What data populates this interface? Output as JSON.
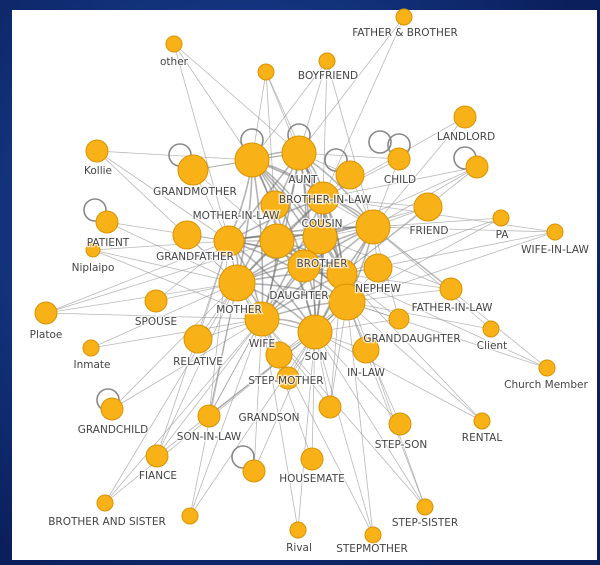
{
  "nodes": [
    {
      "label": "FATHER & BROTHER"
    },
    {
      "label": "other"
    },
    {
      "label": "BOYFRIEND"
    },
    {
      "label": "LANDLORD"
    },
    {
      "label": "Kollie"
    },
    {
      "label": "GRANDMOTHER"
    },
    {
      "label": "AUNT"
    },
    {
      "label": "CHILD"
    },
    {
      "label": "BROTHER-IN-LAW"
    },
    {
      "label": "MOTHER-IN-LAW"
    },
    {
      "label": "COUSIN"
    },
    {
      "label": "FRIEND"
    },
    {
      "label": "PATIENT"
    },
    {
      "label": "PA"
    },
    {
      "label": "WIFE-IN-LAW"
    },
    {
      "label": "GRANDFATHER"
    },
    {
      "label": "Niplaipo"
    },
    {
      "label": "BROTHER"
    },
    {
      "label": "DAUGHTER"
    },
    {
      "label": "NEPHEW"
    },
    {
      "label": "FATHER-IN-LAW"
    },
    {
      "label": "SPOUSE"
    },
    {
      "label": "MOTHER"
    },
    {
      "label": "Platoe"
    },
    {
      "label": "Client"
    },
    {
      "label": "WIFE"
    },
    {
      "label": "GRANDDAUGHTER"
    },
    {
      "label": "Inmate"
    },
    {
      "label": "RELATIVE"
    },
    {
      "label": "SON"
    },
    {
      "label": "IN-LAW"
    },
    {
      "label": "Church Member"
    },
    {
      "label": "STEP-MOTHER"
    },
    {
      "label": "GRANDCHILD"
    },
    {
      "label": "GRANDSON"
    },
    {
      "label": "SON-IN-LAW"
    },
    {
      "label": "STEP-SON"
    },
    {
      "label": "RENTAL"
    },
    {
      "label": "FIANCE"
    },
    {
      "label": "HOUSEMATE"
    },
    {
      "label": "BROTHER AND SISTER"
    },
    {
      "label": "STEP-SISTER"
    },
    {
      "label": "Rival"
    },
    {
      "label": "STEPMOTHER"
    }
  ]
}
